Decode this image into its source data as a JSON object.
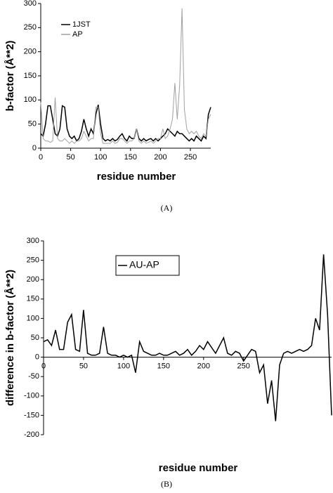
{
  "chart_data": [
    {
      "type": "line",
      "caption": "(A)",
      "xlabel": "residue number",
      "ylabel": "b-factor (Å**2)",
      "x": [
        0,
        4,
        8,
        12,
        16,
        20,
        24,
        28,
        32,
        36,
        40,
        44,
        48,
        52,
        56,
        60,
        64,
        68,
        72,
        76,
        80,
        84,
        88,
        92,
        96,
        100,
        104,
        108,
        112,
        116,
        120,
        124,
        128,
        132,
        136,
        140,
        144,
        148,
        152,
        156,
        160,
        164,
        168,
        172,
        176,
        180,
        184,
        188,
        192,
        196,
        200,
        204,
        208,
        212,
        216,
        220,
        224,
        228,
        232,
        236,
        240,
        244,
        248,
        252,
        256,
        260,
        264,
        268,
        272,
        276,
        280,
        284
      ],
      "series": [
        {
          "name": "1JST",
          "color": "#000000",
          "values": [
            30,
            25,
            50,
            88,
            88,
            60,
            30,
            25,
            40,
            88,
            85,
            40,
            25,
            20,
            25,
            15,
            20,
            35,
            60,
            40,
            25,
            40,
            30,
            70,
            90,
            50,
            20,
            15,
            18,
            15,
            20,
            15,
            18,
            25,
            30,
            20,
            15,
            25,
            20,
            20,
            40,
            20,
            15,
            20,
            15,
            18,
            20,
            15,
            20,
            15,
            20,
            25,
            30,
            40,
            35,
            30,
            25,
            35,
            30,
            30,
            25,
            20,
            15,
            20,
            15,
            25,
            20,
            15,
            25,
            20,
            70,
            85
          ]
        },
        {
          "name": "AP",
          "color": "#a0a0a0",
          "values": [
            95,
            20,
            15,
            15,
            12,
            15,
            105,
            20,
            15,
            15,
            20,
            15,
            10,
            15,
            10,
            15,
            15,
            20,
            35,
            25,
            15,
            20,
            20,
            85,
            85,
            30,
            10,
            10,
            10,
            10,
            15,
            10,
            12,
            20,
            20,
            15,
            10,
            15,
            15,
            20,
            40,
            15,
            10,
            15,
            10,
            12,
            15,
            10,
            15,
            20,
            20,
            40,
            20,
            25,
            40,
            60,
            135,
            60,
            130,
            290,
            80,
            40,
            30,
            35,
            30,
            35,
            25,
            20,
            30,
            25,
            60,
            70
          ]
        }
      ],
      "xlim": [
        0,
        284
      ],
      "xticks": [
        0,
        50,
        100,
        150,
        200,
        250
      ],
      "ylim": [
        0,
        300
      ],
      "yticks": [
        0,
        50,
        100,
        150,
        200,
        250,
        300
      ],
      "grid": false,
      "legend": "upper left"
    },
    {
      "type": "line",
      "caption": "(B)",
      "xlabel": "residue number",
      "ylabel": "difference in b-factor (Å**2)",
      "x": [
        0,
        5,
        10,
        15,
        20,
        25,
        30,
        35,
        40,
        45,
        50,
        55,
        60,
        65,
        70,
        75,
        80,
        85,
        90,
        95,
        100,
        105,
        110,
        115,
        120,
        125,
        130,
        135,
        140,
        145,
        150,
        155,
        160,
        165,
        170,
        175,
        180,
        185,
        190,
        195,
        200,
        205,
        210,
        215,
        220,
        225,
        230,
        235,
        240,
        245,
        250,
        255,
        260,
        265,
        270,
        275,
        280,
        285,
        290,
        295,
        300,
        305,
        310,
        315,
        320,
        325,
        330,
        335,
        340,
        345,
        350,
        355,
        360
      ],
      "series": [
        {
          "name": "AU-AP",
          "color": "#000000",
          "values": [
            40,
            45,
            30,
            70,
            20,
            20,
            90,
            110,
            20,
            15,
            122,
            10,
            5,
            5,
            10,
            78,
            10,
            5,
            5,
            0,
            5,
            0,
            5,
            -40,
            40,
            15,
            10,
            5,
            5,
            10,
            5,
            5,
            10,
            15,
            5,
            10,
            20,
            5,
            15,
            30,
            20,
            40,
            25,
            10,
            30,
            50,
            10,
            5,
            15,
            10,
            -10,
            5,
            20,
            15,
            -40,
            -20,
            -120,
            -60,
            -165,
            -20,
            10,
            15,
            10,
            15,
            20,
            15,
            20,
            30,
            100,
            70,
            265,
            110,
            -150
          ]
        }
      ],
      "xlim": [
        0,
        360
      ],
      "xticks": [
        0,
        50,
        100,
        150,
        200,
        250
      ],
      "ylim": [
        -200,
        300
      ],
      "yticks": [
        -200,
        -150,
        -100,
        -50,
        0,
        50,
        100,
        150,
        200,
        250,
        300
      ],
      "grid": false,
      "legend": "upper left"
    }
  ]
}
